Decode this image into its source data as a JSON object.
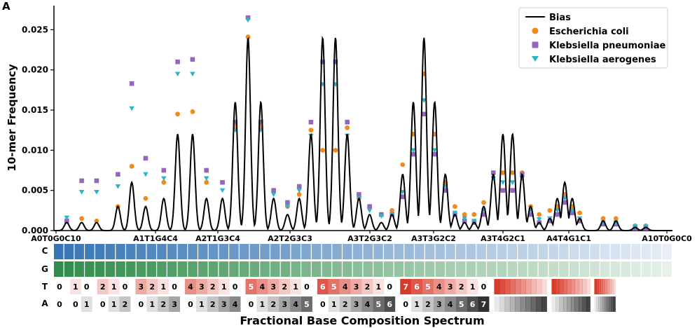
{
  "panel_label": "A",
  "chart_data": {
    "type": "scatter",
    "title": "",
    "ylabel": "10-mer Frequency",
    "xlabel": "Fractional Base Composition Spectrum",
    "ylim": [
      0,
      0.028
    ],
    "yticks": [
      0.0,
      0.005,
      0.01,
      0.015,
      0.02,
      0.025
    ],
    "ytick_labels": [
      "0.000",
      "0.005",
      "0.010",
      "0.015",
      "0.020",
      "0.025"
    ],
    "xtick_labels": [
      "A0T0G0C10",
      "A1T1G4C4",
      "A2T1G3C4",
      "A2T2G3C3",
      "A3T2G3C2",
      "A3T3G2C2",
      "A3T4G2C1",
      "A4T4G1C1",
      "A10T0G0C0"
    ],
    "legend": {
      "placement": "top-right",
      "entries": [
        "Bias",
        "Escherichia coli",
        "Klebsiella pneumoniae",
        "Klebsiella aerogenes"
      ]
    },
    "colors": {
      "bias": "#000000",
      "ecoli": "#f28a1a",
      "kpneu": "#9467bd",
      "kaero": "#2cb5c8"
    },
    "bias_peaks": [
      [
        1.2,
        0.001
      ],
      [
        2.6,
        0.001
      ],
      [
        4.0,
        0.001
      ],
      [
        6.0,
        0.003
      ],
      [
        7.3,
        0.006
      ],
      [
        8.6,
        0.003
      ],
      [
        10.3,
        0.004
      ],
      [
        11.6,
        0.012
      ],
      [
        13.0,
        0.012
      ],
      [
        14.3,
        0.004
      ],
      [
        15.8,
        0.004
      ],
      [
        17.0,
        0.016
      ],
      [
        18.2,
        0.024
      ],
      [
        19.4,
        0.016
      ],
      [
        20.6,
        0.004
      ],
      [
        21.9,
        0.002
      ],
      [
        23.0,
        0.004
      ],
      [
        24.1,
        0.012
      ],
      [
        25.2,
        0.024
      ],
      [
        26.4,
        0.024
      ],
      [
        27.5,
        0.012
      ],
      [
        28.6,
        0.004
      ],
      [
        29.6,
        0.002
      ],
      [
        30.7,
        0.001
      ],
      [
        31.7,
        0.002
      ],
      [
        32.7,
        0.007
      ],
      [
        33.7,
        0.016
      ],
      [
        34.7,
        0.024
      ],
      [
        35.7,
        0.016
      ],
      [
        36.7,
        0.007
      ],
      [
        37.6,
        0.002
      ],
      [
        38.5,
        0.001
      ],
      [
        39.4,
        0.001
      ],
      [
        40.3,
        0.003
      ],
      [
        41.2,
        0.007
      ],
      [
        42.1,
        0.012
      ],
      [
        43.0,
        0.012
      ],
      [
        43.9,
        0.007
      ],
      [
        44.7,
        0.003
      ],
      [
        45.5,
        0.001
      ],
      [
        46.5,
        0.0015
      ],
      [
        47.2,
        0.004
      ],
      [
        47.9,
        0.006
      ],
      [
        48.6,
        0.004
      ],
      [
        49.3,
        0.0015
      ],
      [
        51.5,
        0.0012
      ],
      [
        52.7,
        0.0012
      ],
      [
        54.5,
        0.0004
      ],
      [
        55.5,
        0.0004
      ]
    ],
    "series": [
      {
        "name": "Escherichia coli",
        "marker": "circle",
        "points": [
          [
            1.2,
            0.0012
          ],
          [
            2.6,
            0.0015
          ],
          [
            4.0,
            0.0012
          ],
          [
            6.0,
            0.003
          ],
          [
            7.3,
            0.008
          ],
          [
            8.6,
            0.004
          ],
          [
            10.3,
            0.006
          ],
          [
            11.6,
            0.0145
          ],
          [
            13.0,
            0.0148
          ],
          [
            14.3,
            0.006
          ],
          [
            15.8,
            0.006
          ],
          [
            17.0,
            0.013
          ],
          [
            18.2,
            0.0241
          ],
          [
            19.4,
            0.013
          ],
          [
            20.6,
            0.005
          ],
          [
            21.9,
            0.003
          ],
          [
            23.0,
            0.0045
          ],
          [
            24.1,
            0.0125
          ],
          [
            25.2,
            0.01
          ],
          [
            26.4,
            0.01
          ],
          [
            27.5,
            0.0128
          ],
          [
            28.6,
            0.004
          ],
          [
            29.6,
            0.003
          ],
          [
            30.7,
            0.002
          ],
          [
            31.7,
            0.0025
          ],
          [
            32.7,
            0.0082
          ],
          [
            33.7,
            0.012
          ],
          [
            34.7,
            0.0195
          ],
          [
            35.7,
            0.012
          ],
          [
            36.7,
            0.006
          ],
          [
            37.6,
            0.003
          ],
          [
            38.5,
            0.002
          ],
          [
            39.4,
            0.002
          ],
          [
            40.3,
            0.0035
          ],
          [
            41.2,
            0.0072
          ],
          [
            42.1,
            0.0072
          ],
          [
            43.0,
            0.0072
          ],
          [
            43.9,
            0.0072
          ],
          [
            44.7,
            0.003
          ],
          [
            45.5,
            0.002
          ],
          [
            46.5,
            0.0025
          ],
          [
            47.2,
            0.003
          ],
          [
            47.9,
            0.0045
          ],
          [
            48.6,
            0.003
          ],
          [
            49.3,
            0.0022
          ],
          [
            51.5,
            0.0015
          ],
          [
            52.7,
            0.0015
          ],
          [
            54.5,
            0.0006
          ],
          [
            55.5,
            0.0006
          ]
        ]
      },
      {
        "name": "Klebsiella pneumoniae",
        "marker": "square",
        "points": [
          [
            1.2,
            0.0012
          ],
          [
            2.6,
            0.0062
          ],
          [
            4.0,
            0.0062
          ],
          [
            6.0,
            0.007
          ],
          [
            7.3,
            0.0183
          ],
          [
            8.6,
            0.009
          ],
          [
            10.3,
            0.0075
          ],
          [
            11.6,
            0.021
          ],
          [
            13.0,
            0.0213
          ],
          [
            14.3,
            0.0075
          ],
          [
            15.8,
            0.006
          ],
          [
            17.0,
            0.0135
          ],
          [
            18.2,
            0.0265
          ],
          [
            19.4,
            0.0135
          ],
          [
            20.6,
            0.005
          ],
          [
            21.9,
            0.0035
          ],
          [
            23.0,
            0.0055
          ],
          [
            24.1,
            0.0135
          ],
          [
            25.2,
            0.021
          ],
          [
            26.4,
            0.021
          ],
          [
            27.5,
            0.0135
          ],
          [
            28.6,
            0.0045
          ],
          [
            29.6,
            0.003
          ],
          [
            30.7,
            0.002
          ],
          [
            31.7,
            0.002
          ],
          [
            32.7,
            0.0042
          ],
          [
            33.7,
            0.0095
          ],
          [
            34.7,
            0.0145
          ],
          [
            35.7,
            0.0095
          ],
          [
            36.7,
            0.005
          ],
          [
            37.6,
            0.002
          ],
          [
            38.5,
            0.0012
          ],
          [
            39.4,
            0.001
          ],
          [
            40.3,
            0.002
          ],
          [
            41.2,
            0.0072
          ],
          [
            42.1,
            0.005
          ],
          [
            43.0,
            0.005
          ],
          [
            43.9,
            0.007
          ],
          [
            44.7,
            0.002
          ],
          [
            45.5,
            0.001
          ],
          [
            46.5,
            0.0012
          ],
          [
            47.2,
            0.002
          ],
          [
            47.9,
            0.0035
          ],
          [
            48.6,
            0.0022
          ],
          [
            49.3,
            0.0012
          ],
          [
            51.5,
            0.0008
          ],
          [
            52.7,
            0.0008
          ],
          [
            54.5,
            0.0003
          ],
          [
            55.5,
            0.0003
          ]
        ]
      },
      {
        "name": "Klebsiella aerogenes",
        "marker": "triangle",
        "points": [
          [
            1.2,
            0.0016
          ],
          [
            2.6,
            0.0048
          ],
          [
            4.0,
            0.0048
          ],
          [
            6.0,
            0.0055
          ],
          [
            7.3,
            0.0152
          ],
          [
            8.6,
            0.007
          ],
          [
            10.3,
            0.0065
          ],
          [
            11.6,
            0.0195
          ],
          [
            13.0,
            0.0195
          ],
          [
            14.3,
            0.0065
          ],
          [
            15.8,
            0.005
          ],
          [
            17.0,
            0.0125
          ],
          [
            18.2,
            0.0262
          ],
          [
            19.4,
            0.0125
          ],
          [
            20.6,
            0.0045
          ],
          [
            21.9,
            0.003
          ],
          [
            23.0,
            0.005
          ],
          [
            24.1,
            0.0118
          ],
          [
            25.2,
            0.0182
          ],
          [
            26.4,
            0.0182
          ],
          [
            27.5,
            0.0118
          ],
          [
            28.6,
            0.004
          ],
          [
            29.6,
            0.0025
          ],
          [
            30.7,
            0.0018
          ],
          [
            31.7,
            0.002
          ],
          [
            32.7,
            0.0048
          ],
          [
            33.7,
            0.01
          ],
          [
            34.7,
            0.0162
          ],
          [
            35.7,
            0.01
          ],
          [
            36.7,
            0.0055
          ],
          [
            37.6,
            0.0022
          ],
          [
            38.5,
            0.0015
          ],
          [
            39.4,
            0.0012
          ],
          [
            40.3,
            0.0025
          ],
          [
            41.2,
            0.0065
          ],
          [
            42.1,
            0.006
          ],
          [
            43.0,
            0.006
          ],
          [
            43.9,
            0.0065
          ],
          [
            44.7,
            0.0025
          ],
          [
            45.5,
            0.0014
          ],
          [
            46.5,
            0.0015
          ],
          [
            47.2,
            0.0025
          ],
          [
            47.9,
            0.004
          ],
          [
            48.6,
            0.0025
          ],
          [
            49.3,
            0.0015
          ],
          [
            51.5,
            0.001
          ],
          [
            52.7,
            0.001
          ],
          [
            54.5,
            0.0005
          ],
          [
            55.5,
            0.0005
          ]
        ]
      }
    ],
    "composition_rows": {
      "C": {
        "label": "C",
        "color": "#2166ac"
      },
      "G": {
        "label": "G",
        "color": "#1a7f37"
      },
      "T": {
        "label": "T",
        "color": "#d7301f",
        "numbers": [
          [
            "0"
          ],
          [
            "1",
            "0"
          ],
          [
            "2",
            "1",
            "0"
          ],
          [
            "3",
            "2",
            "1",
            "0"
          ],
          [
            "4",
            "3",
            "2",
            "1",
            "0"
          ],
          [
            "5",
            "4",
            "3",
            "2",
            "1",
            "0"
          ],
          [
            "6",
            "5",
            "4",
            "3",
            "2",
            "1",
            "0"
          ],
          [
            "7",
            "6",
            "5",
            "4",
            "3",
            "2",
            "1",
            "0"
          ]
        ]
      },
      "A": {
        "label": "A",
        "color": "#252525",
        "numbers": [
          [
            "0"
          ],
          [
            "0",
            "1"
          ],
          [
            "0",
            "1",
            "2"
          ],
          [
            "0",
            "1",
            "2",
            "3"
          ],
          [
            "0",
            "1",
            "2",
            "3",
            "4"
          ],
          [
            "0",
            "1",
            "2",
            "3",
            "4",
            "5"
          ],
          [
            "0",
            "1",
            "2",
            "3",
            "4",
            "5",
            "6"
          ],
          [
            "0",
            "1",
            "2",
            "3",
            "4",
            "5",
            "6",
            "7"
          ]
        ]
      }
    }
  }
}
